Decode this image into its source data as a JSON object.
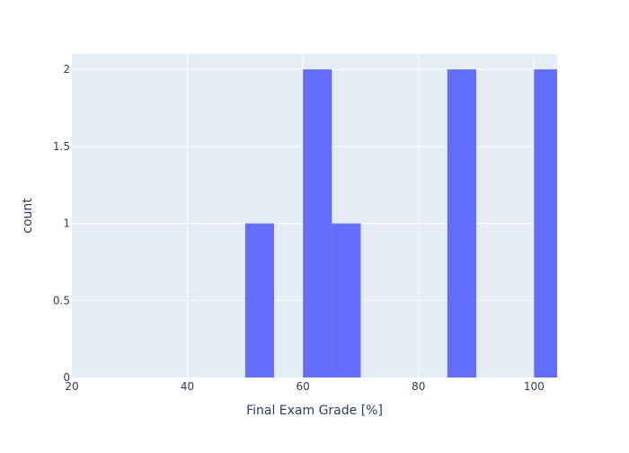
{
  "chart_data": {
    "type": "bar",
    "subtype": "histogram",
    "xlabel": "Final Exam Grade [%]",
    "ylabel": "count",
    "xlim": [
      20,
      104
    ],
    "ylim": [
      0,
      2.1
    ],
    "x_ticks": [
      "20",
      "40",
      "60",
      "80",
      "100"
    ],
    "y_ticks": [
      "0",
      "0.5",
      "1",
      "1.5",
      "2"
    ],
    "bin_width": 5,
    "bins": [
      {
        "start": 50,
        "end": 55,
        "count": 1
      },
      {
        "start": 60,
        "end": 65,
        "count": 2
      },
      {
        "start": 65,
        "end": 70,
        "count": 1
      },
      {
        "start": 85,
        "end": 90,
        "count": 2
      },
      {
        "start": 100,
        "end": 105,
        "count": 2
      }
    ],
    "grid": true,
    "colors": {
      "bar": "#636efa",
      "plot_background": "#e5ecf6",
      "grid": "#ffffff",
      "text": "#2a3f5f"
    }
  }
}
